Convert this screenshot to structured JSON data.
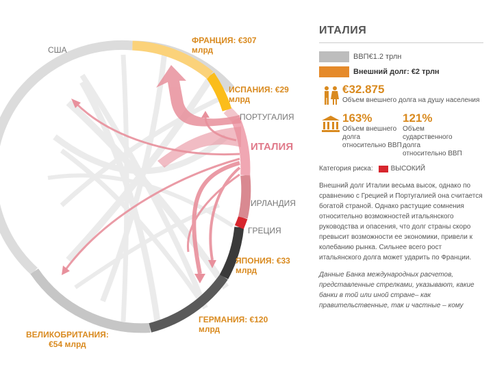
{
  "diagram": {
    "labels": {
      "usa": "США",
      "france_line1": "ФРАНЦИЯ: €307",
      "france_line2": "млрд",
      "spain_line1": "ИСПАНИЯ: €29",
      "spain_line2": "млрд",
      "portugal": "ПОРТУГАЛИЯ",
      "italy": "ИТАЛИЯ",
      "ireland": "ИРЛАНДИЯ",
      "greece": "ГРЕЦИЯ",
      "japan_line1": "ЯПОНИЯ: €33",
      "japan_line2": "млрд",
      "germany_line1": "ГЕРМАНИЯ: €120",
      "germany_line2": "млрд",
      "uk_line1": "ВЕЛИКОБРИТАНИЯ:",
      "uk_line2": "€54 млрд"
    },
    "colors": {
      "ring_gray": "#d9d9d9",
      "france": "#fbd27a",
      "spain": "#fbbd1b",
      "portugal": "#f2c6cc",
      "italy": "#f0a7b3",
      "ireland": "#d98991",
      "greece": "#d7262e",
      "japan": "#3a3a3a",
      "germany": "#5a5a5a",
      "uk": "#bdbdbd",
      "flow": "#e8909c"
    }
  },
  "panel": {
    "title": "ИТАЛИЯ",
    "legend": [
      {
        "label": "ВВП€1.2 трлн",
        "color": "#bdbdbd"
      },
      {
        "label": "Внешний долг: €2 трлн",
        "color": "#e58a2a"
      }
    ],
    "per_capita": {
      "value": "€32.875",
      "caption": "Объем внешнего долга на душу населения"
    },
    "ratios": [
      {
        "value": "163%",
        "caption": "Объем внешнего долга относительно ВВП"
      },
      {
        "value": "121%",
        "caption": "Объем сударственного долга относительно ВВП"
      }
    ],
    "risk": {
      "label": "Категория риска:",
      "value": "ВЫСОКИЙ",
      "color": "#d7262e"
    },
    "paragraph": "Внешний долг Италии весьма высок, однако по сравнению с Грецией и Португалией она считается богатой страной. Однако растущие сомнения относительно возможностей итальянского руководства и опасения, что долг страны скоро превысит возможности ее экономики, привели к колебанию рынка. Сильнее всего рост итальянского долга может ударить по Франции.",
    "note": "Данные Банка международных расчетов, представленные стрелками, указывают, какие банки в той или иной стране– как правительственные, так и частные – кому"
  }
}
